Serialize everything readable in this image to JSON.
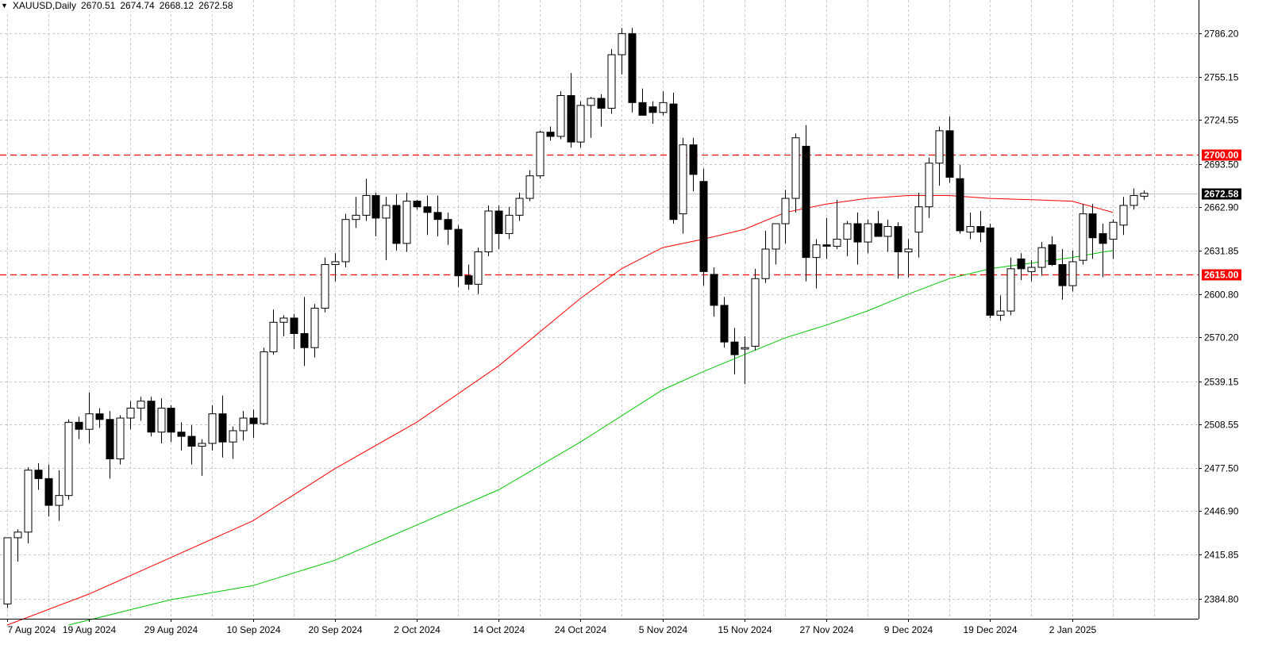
{
  "header": {
    "symbol": "XAUUSD,Daily",
    "open": "2670.51",
    "high": "2674.74",
    "low": "2668.12",
    "close": "2672.58"
  },
  "price_tag": "2672.58",
  "colors": {
    "background": "#ffffff",
    "grid": "#c8c8c8",
    "bull_fill": "#ffffff",
    "bear_fill": "#000000",
    "candle_outline": "#000000",
    "ma_fast": "#ff0000",
    "ma_slow": "#00c800",
    "level_line": "#ff0000",
    "price_line": "#c0c0c0"
  },
  "chart_data": {
    "type": "candlestick",
    "symbol": "XAUUSD",
    "timeframe": "Daily",
    "ylim": [
      2368,
      2806
    ],
    "y_ticks": [
      "2786.20",
      "2755.15",
      "2724.55",
      "2693.50",
      "2662.90",
      "2631.85",
      "2600.80",
      "2570.20",
      "2539.15",
      "2508.55",
      "2477.50",
      "2446.90",
      "2415.85",
      "2384.80"
    ],
    "x_ticks": [
      {
        "label": "7 Aug 2024",
        "index": 0
      },
      {
        "label": "19 Aug 2024",
        "index": 8
      },
      {
        "label": "29 Aug 2024",
        "index": 16
      },
      {
        "label": "10 Sep 2024",
        "index": 24
      },
      {
        "label": "20 Sep 2024",
        "index": 32
      },
      {
        "label": "2 Oct 2024",
        "index": 40
      },
      {
        "label": "14 Oct 2024",
        "index": 48
      },
      {
        "label": "24 Oct 2024",
        "index": 56
      },
      {
        "label": "5 Nov 2024",
        "index": 64
      },
      {
        "label": "15 Nov 2024",
        "index": 72
      },
      {
        "label": "27 Nov 2024",
        "index": 80
      },
      {
        "label": "9 Dec 2024",
        "index": 88
      },
      {
        "label": "19 Dec 2024",
        "index": 96
      },
      {
        "label": "2 Jan 2025",
        "index": 104
      }
    ],
    "levels": [
      {
        "price": 2700.0,
        "label": "2700.00"
      },
      {
        "price": 2615.0,
        "label": "2615.00"
      }
    ],
    "last_price": 2672.58,
    "candles": [
      {
        "o": 2381,
        "h": 2428,
        "l": 2378,
        "c": 2428
      },
      {
        "o": 2428,
        "h": 2434,
        "l": 2411,
        "c": 2432
      },
      {
        "o": 2432,
        "h": 2478,
        "l": 2424,
        "c": 2476
      },
      {
        "o": 2476,
        "h": 2481,
        "l": 2462,
        "c": 2470
      },
      {
        "o": 2470,
        "h": 2480,
        "l": 2443,
        "c": 2451
      },
      {
        "o": 2451,
        "h": 2476,
        "l": 2440,
        "c": 2458
      },
      {
        "o": 2458,
        "h": 2512,
        "l": 2455,
        "c": 2510
      },
      {
        "o": 2510,
        "h": 2514,
        "l": 2498,
        "c": 2505
      },
      {
        "o": 2505,
        "h": 2531,
        "l": 2495,
        "c": 2516
      },
      {
        "o": 2516,
        "h": 2520,
        "l": 2506,
        "c": 2512
      },
      {
        "o": 2512,
        "h": 2518,
        "l": 2470,
        "c": 2484
      },
      {
        "o": 2484,
        "h": 2515,
        "l": 2480,
        "c": 2513
      },
      {
        "o": 2513,
        "h": 2525,
        "l": 2505,
        "c": 2520
      },
      {
        "o": 2520,
        "h": 2528,
        "l": 2511,
        "c": 2525
      },
      {
        "o": 2525,
        "h": 2528,
        "l": 2500,
        "c": 2503
      },
      {
        "o": 2503,
        "h": 2527,
        "l": 2495,
        "c": 2520
      },
      {
        "o": 2520,
        "h": 2522,
        "l": 2496,
        "c": 2503
      },
      {
        "o": 2503,
        "h": 2510,
        "l": 2490,
        "c": 2500
      },
      {
        "o": 2500,
        "h": 2508,
        "l": 2480,
        "c": 2493
      },
      {
        "o": 2493,
        "h": 2498,
        "l": 2472,
        "c": 2495
      },
      {
        "o": 2495,
        "h": 2522,
        "l": 2490,
        "c": 2516
      },
      {
        "o": 2516,
        "h": 2529,
        "l": 2485,
        "c": 2496
      },
      {
        "o": 2496,
        "h": 2507,
        "l": 2484,
        "c": 2504
      },
      {
        "o": 2504,
        "h": 2518,
        "l": 2497,
        "c": 2513
      },
      {
        "o": 2513,
        "h": 2519,
        "l": 2499,
        "c": 2509
      },
      {
        "o": 2509,
        "h": 2563,
        "l": 2508,
        "c": 2560
      },
      {
        "o": 2560,
        "h": 2590,
        "l": 2558,
        "c": 2581
      },
      {
        "o": 2581,
        "h": 2586,
        "l": 2571,
        "c": 2584
      },
      {
        "o": 2584,
        "h": 2587,
        "l": 2562,
        "c": 2573
      },
      {
        "o": 2573,
        "h": 2599,
        "l": 2550,
        "c": 2563
      },
      {
        "o": 2563,
        "h": 2594,
        "l": 2556,
        "c": 2591
      },
      {
        "o": 2591,
        "h": 2627,
        "l": 2588,
        "c": 2622
      },
      {
        "o": 2622,
        "h": 2630,
        "l": 2610,
        "c": 2624
      },
      {
        "o": 2624,
        "h": 2658,
        "l": 2620,
        "c": 2654
      },
      {
        "o": 2654,
        "h": 2670,
        "l": 2648,
        "c": 2657
      },
      {
        "o": 2657,
        "h": 2683,
        "l": 2653,
        "c": 2671
      },
      {
        "o": 2671,
        "h": 2673,
        "l": 2642,
        "c": 2655
      },
      {
        "o": 2655,
        "h": 2670,
        "l": 2625,
        "c": 2664
      },
      {
        "o": 2664,
        "h": 2672,
        "l": 2632,
        "c": 2637
      },
      {
        "o": 2637,
        "h": 2673,
        "l": 2631,
        "c": 2667
      },
      {
        "o": 2667,
        "h": 2668,
        "l": 2661,
        "c": 2663
      },
      {
        "o": 2663,
        "h": 2671,
        "l": 2643,
        "c": 2659
      },
      {
        "o": 2659,
        "h": 2671,
        "l": 2642,
        "c": 2654
      },
      {
        "o": 2654,
        "h": 2659,
        "l": 2636,
        "c": 2647
      },
      {
        "o": 2647,
        "h": 2650,
        "l": 2606,
        "c": 2614
      },
      {
        "o": 2614,
        "h": 2622,
        "l": 2604,
        "c": 2608
      },
      {
        "o": 2608,
        "h": 2634,
        "l": 2601,
        "c": 2631
      },
      {
        "o": 2631,
        "h": 2664,
        "l": 2628,
        "c": 2660
      },
      {
        "o": 2660,
        "h": 2664,
        "l": 2633,
        "c": 2644
      },
      {
        "o": 2644,
        "h": 2663,
        "l": 2640,
        "c": 2657
      },
      {
        "o": 2657,
        "h": 2673,
        "l": 2653,
        "c": 2669
      },
      {
        "o": 2669,
        "h": 2689,
        "l": 2667,
        "c": 2685
      },
      {
        "o": 2685,
        "h": 2717,
        "l": 2683,
        "c": 2716
      },
      {
        "o": 2716,
        "h": 2720,
        "l": 2710,
        "c": 2713
      },
      {
        "o": 2713,
        "h": 2745,
        "l": 2711,
        "c": 2742
      },
      {
        "o": 2742,
        "h": 2758,
        "l": 2705,
        "c": 2709
      },
      {
        "o": 2709,
        "h": 2738,
        "l": 2705,
        "c": 2735
      },
      {
        "o": 2735,
        "h": 2741,
        "l": 2712,
        "c": 2740
      },
      {
        "o": 2740,
        "h": 2743,
        "l": 2720,
        "c": 2733
      },
      {
        "o": 2733,
        "h": 2775,
        "l": 2729,
        "c": 2771
      },
      {
        "o": 2771,
        "h": 2790,
        "l": 2757,
        "c": 2786
      },
      {
        "o": 2786,
        "h": 2790,
        "l": 2730,
        "c": 2737
      },
      {
        "o": 2737,
        "h": 2747,
        "l": 2731,
        "c": 2728
      },
      {
        "o": 2734,
        "h": 2738,
        "l": 2722,
        "c": 2730
      },
      {
        "o": 2730,
        "h": 2745,
        "l": 2728,
        "c": 2737
      },
      {
        "o": 2736,
        "h": 2744,
        "l": 2651,
        "c": 2654
      },
      {
        "o": 2658,
        "h": 2712,
        "l": 2644,
        "c": 2707
      },
      {
        "o": 2707,
        "h": 2712,
        "l": 2674,
        "c": 2686
      },
      {
        "o": 2681,
        "h": 2690,
        "l": 2607,
        "c": 2617
      },
      {
        "o": 2615,
        "h": 2620,
        "l": 2585,
        "c": 2593
      },
      {
        "o": 2593,
        "h": 2599,
        "l": 2563,
        "c": 2567
      },
      {
        "o": 2567,
        "h": 2577,
        "l": 2544,
        "c": 2558
      },
      {
        "o": 2562,
        "h": 2571,
        "l": 2537,
        "c": 2563
      },
      {
        "o": 2564,
        "h": 2619,
        "l": 2561,
        "c": 2612
      },
      {
        "o": 2612,
        "h": 2646,
        "l": 2609,
        "c": 2633
      },
      {
        "o": 2633,
        "h": 2650,
        "l": 2622,
        "c": 2651
      },
      {
        "o": 2651,
        "h": 2675,
        "l": 2637,
        "c": 2669
      },
      {
        "o": 2669,
        "h": 2715,
        "l": 2659,
        "c": 2712
      },
      {
        "o": 2706,
        "h": 2721,
        "l": 2610,
        "c": 2627
      },
      {
        "o": 2627,
        "h": 2640,
        "l": 2605,
        "c": 2636
      },
      {
        "o": 2636,
        "h": 2655,
        "l": 2626,
        "c": 2635
      },
      {
        "o": 2635,
        "h": 2668,
        "l": 2633,
        "c": 2640
      },
      {
        "o": 2640,
        "h": 2653,
        "l": 2628,
        "c": 2651
      },
      {
        "o": 2651,
        "h": 2659,
        "l": 2622,
        "c": 2638
      },
      {
        "o": 2638,
        "h": 2654,
        "l": 2630,
        "c": 2651
      },
      {
        "o": 2651,
        "h": 2660,
        "l": 2643,
        "c": 2642
      },
      {
        "o": 2642,
        "h": 2654,
        "l": 2631,
        "c": 2649
      },
      {
        "o": 2649,
        "h": 2652,
        "l": 2612,
        "c": 2631
      },
      {
        "o": 2631,
        "h": 2640,
        "l": 2613,
        "c": 2633
      },
      {
        "o": 2645,
        "h": 2673,
        "l": 2627,
        "c": 2663
      },
      {
        "o": 2663,
        "h": 2698,
        "l": 2655,
        "c": 2694
      },
      {
        "o": 2694,
        "h": 2720,
        "l": 2678,
        "c": 2717
      },
      {
        "o": 2717,
        "h": 2727,
        "l": 2680,
        "c": 2684
      },
      {
        "o": 2683,
        "h": 2693,
        "l": 2644,
        "c": 2646
      },
      {
        "o": 2645,
        "h": 2659,
        "l": 2640,
        "c": 2649
      },
      {
        "o": 2649,
        "h": 2660,
        "l": 2638,
        "c": 2645
      },
      {
        "o": 2648,
        "h": 2651,
        "l": 2584,
        "c": 2586
      },
      {
        "o": 2586,
        "h": 2600,
        "l": 2582,
        "c": 2589
      },
      {
        "o": 2589,
        "h": 2627,
        "l": 2586,
        "c": 2619
      },
      {
        "o": 2626,
        "h": 2630,
        "l": 2611,
        "c": 2619
      },
      {
        "o": 2617,
        "h": 2625,
        "l": 2610,
        "c": 2620
      },
      {
        "o": 2620,
        "h": 2638,
        "l": 2614,
        "c": 2634
      },
      {
        "o": 2636,
        "h": 2642,
        "l": 2621,
        "c": 2622
      },
      {
        "o": 2622,
        "h": 2633,
        "l": 2597,
        "c": 2607
      },
      {
        "o": 2607,
        "h": 2632,
        "l": 2603,
        "c": 2624
      },
      {
        "o": 2625,
        "h": 2665,
        "l": 2622,
        "c": 2658
      },
      {
        "o": 2658,
        "h": 2665,
        "l": 2626,
        "c": 2641
      },
      {
        "o": 2644,
        "h": 2651,
        "l": 2613,
        "c": 2637
      },
      {
        "o": 2640,
        "h": 2654,
        "l": 2626,
        "c": 2652
      },
      {
        "o": 2650,
        "h": 2670,
        "l": 2643,
        "c": 2664
      },
      {
        "o": 2664,
        "h": 2676,
        "l": 2661,
        "c": 2671
      },
      {
        "o": 2670.51,
        "h": 2674.74,
        "l": 2668.12,
        "c": 2672.58
      }
    ],
    "ma_fast": [
      [
        0,
        2366
      ],
      [
        8,
        2388
      ],
      [
        16,
        2414
      ],
      [
        24,
        2440
      ],
      [
        32,
        2477
      ],
      [
        40,
        2510
      ],
      [
        48,
        2550
      ],
      [
        56,
        2598
      ],
      [
        60,
        2619
      ],
      [
        64,
        2634
      ],
      [
        68,
        2640
      ],
      [
        72,
        2647
      ],
      [
        76,
        2659
      ],
      [
        80,
        2665
      ],
      [
        84,
        2669
      ],
      [
        88,
        2671
      ],
      [
        92,
        2671
      ],
      [
        96,
        2669
      ],
      [
        100,
        2668
      ],
      [
        104,
        2667
      ],
      [
        108,
        2659
      ]
    ],
    "ma_slow": [
      [
        6,
        2366
      ],
      [
        16,
        2384
      ],
      [
        24,
        2394
      ],
      [
        32,
        2412
      ],
      [
        40,
        2437
      ],
      [
        48,
        2462
      ],
      [
        56,
        2496
      ],
      [
        64,
        2533
      ],
      [
        68,
        2546
      ],
      [
        72,
        2558
      ],
      [
        76,
        2570
      ],
      [
        80,
        2579
      ],
      [
        84,
        2589
      ],
      [
        88,
        2601
      ],
      [
        92,
        2612
      ],
      [
        96,
        2619
      ],
      [
        100,
        2623
      ],
      [
        104,
        2627
      ],
      [
        108,
        2632
      ]
    ]
  }
}
